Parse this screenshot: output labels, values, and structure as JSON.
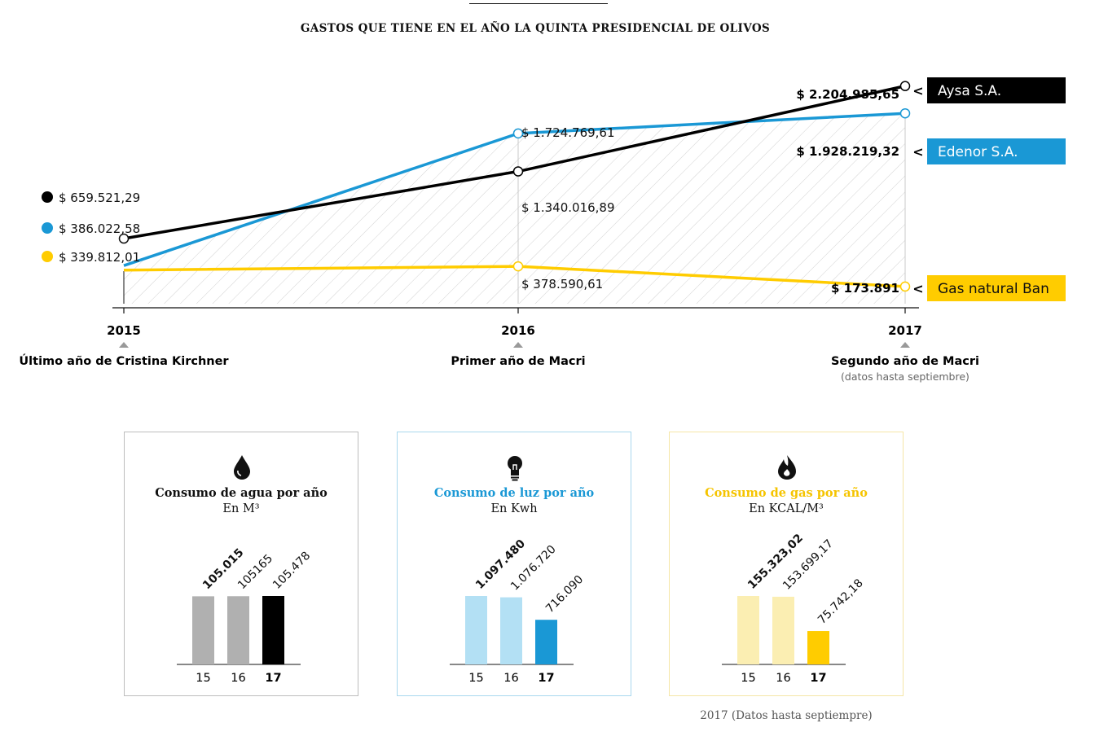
{
  "title": "GASTOS QUE TIENE EN EL AÑO LA QUINTA PRESIDENCIAL DE OLIVOS",
  "chart_data": [
    {
      "type": "line",
      "title": "GASTOS QUE TIENE EN EL AÑO LA QUINTA PRESIDENCIAL DE OLIVOS",
      "x": [
        "2015",
        "2016",
        "2017"
      ],
      "x_descriptions": [
        "Último año de Cristina Kirchner",
        "Primer año de Macri",
        "Segundo año de Macri"
      ],
      "x_note": "(datos hasta septiembre)",
      "ylim": [
        0,
        2400000
      ],
      "series": [
        {
          "name": "Gas natural Ban",
          "color": "#ffcc00",
          "values": [
            339812.01,
            378590.61,
            173891
          ],
          "labels": [
            "$ 339.812,01",
            "$ 378.590,61",
            "$ 173.891"
          ]
        },
        {
          "name": "Edenor S.A.",
          "color": "#1a98d5",
          "values": [
            386022.58,
            1724769.61,
            1928219.32
          ],
          "labels": [
            "$ 386.022,58",
            "$ 1.724.769,61",
            "$ 1.928.219,32"
          ]
        },
        {
          "name": "Aysa S.A.",
          "color": "#000000",
          "values": [
            659521.29,
            1340016.89,
            2204985.65
          ],
          "labels": [
            "$ 659.521,29",
            "$ 1.340.016,89",
            "$ 2.204.985,65"
          ]
        }
      ],
      "legend_arrow": "<"
    },
    {
      "type": "bar",
      "title": "Consumo de agua por año",
      "unit": "En M³",
      "icon": "water-drop-icon",
      "title_color": "#111111",
      "categories": [
        "15",
        "16",
        "17"
      ],
      "values": [
        105015,
        105165,
        105478
      ],
      "labels": [
        "105.015",
        "105165",
        "105.478"
      ],
      "colors": [
        "#b0b0b0",
        "#b0b0b0",
        "#000000"
      ]
    },
    {
      "type": "bar",
      "title": "Consumo de luz por año",
      "unit": "En Kwh",
      "icon": "light-bulb-icon",
      "title_color": "#1a98d5",
      "categories": [
        "15",
        "16",
        "17"
      ],
      "values": [
        1097480,
        1076720,
        716090
      ],
      "labels": [
        "1.097.480",
        "1.076.720",
        "716.090"
      ],
      "colors": [
        "#b3e0f4",
        "#b3e0f4",
        "#1a98d5"
      ]
    },
    {
      "type": "bar",
      "title": "Consumo de gas por año",
      "unit": "En KCAL/M³",
      "icon": "flame-icon",
      "title_color": "#f5c400",
      "categories": [
        "15",
        "16",
        "17"
      ],
      "values": [
        155323.02,
        153699.17,
        75742.18
      ],
      "labels": [
        "155.323,02",
        "153.699,17",
        "75.742,18"
      ],
      "colors": [
        "#fbeeb2",
        "#fbeeb2",
        "#ffcc00"
      ]
    }
  ],
  "footnote": "2017 (Datos hasta septiempre)"
}
